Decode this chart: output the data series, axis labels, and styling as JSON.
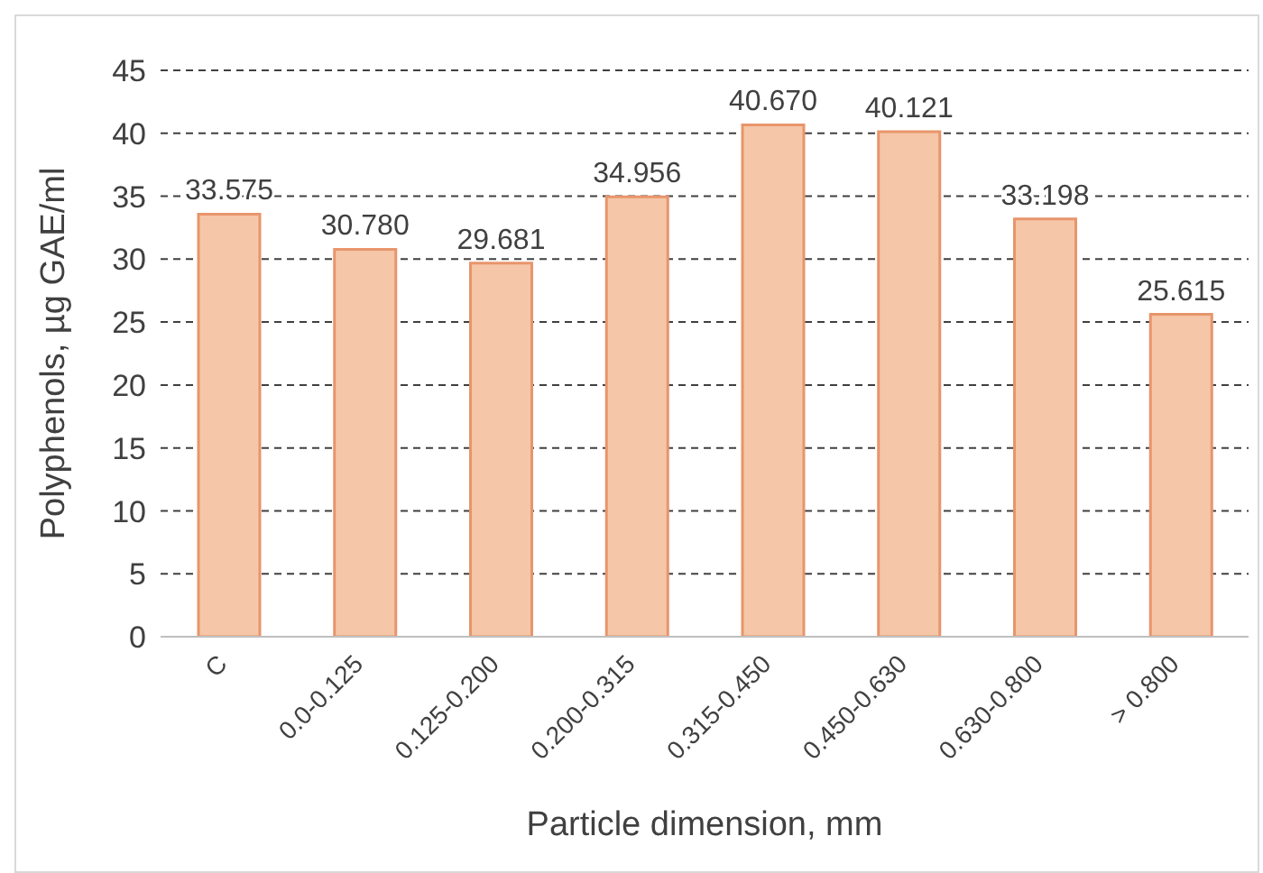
{
  "chart_data": {
    "type": "bar",
    "xlabel": "Particle dimension, mm",
    "ylabel": "Polyphenols, µg GAE/ml",
    "categories": [
      "C",
      "0.0-0.125",
      "0.125-0.200",
      "0.200-0.315",
      "0.315-0.450",
      "0.450-0.630",
      "0.630-0.800",
      "> 0.800"
    ],
    "values": [
      33.575,
      30.78,
      29.681,
      34.956,
      40.67,
      40.121,
      33.198,
      25.615
    ],
    "value_labels": [
      "33.575",
      "30.780",
      "29.681",
      "34.956",
      "40.670",
      "40.121",
      "33.198",
      "25.615"
    ],
    "color": "#f5c6a8",
    "ylim": [
      0,
      45
    ],
    "yticks": [
      0,
      5,
      10,
      15,
      20,
      25,
      30,
      35,
      40,
      45
    ],
    "grid": "y"
  }
}
